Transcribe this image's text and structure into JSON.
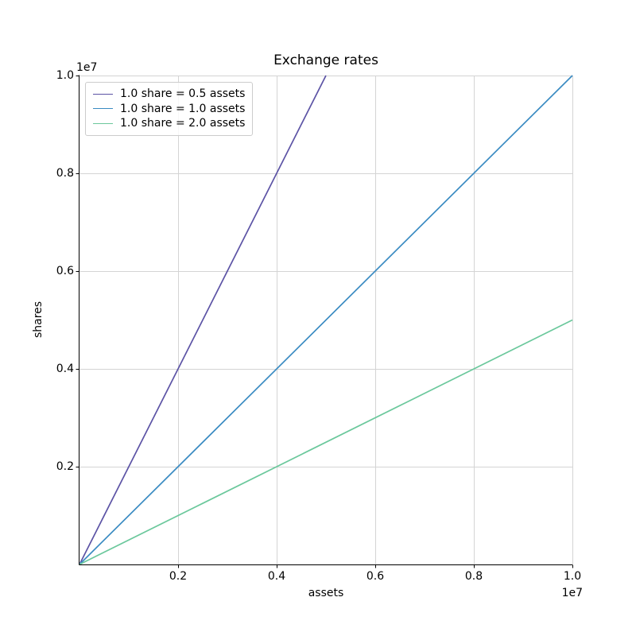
{
  "title": "Exchange rates",
  "axes": {
    "xlabel": "assets",
    "ylabel": "shares",
    "x_offset_text": "1e7",
    "y_offset_text": "1e7"
  },
  "colors": {
    "grid": "#d4d4d4",
    "spine": "#000000",
    "background": "#ffffff",
    "legend_border": "#cccccc"
  },
  "chart_data": {
    "type": "line",
    "title": "Exchange rates",
    "xlabel": "assets",
    "ylabel": "shares",
    "x_offset_text": "1e7",
    "y_offset_text": "1e7",
    "xlim": [
      0,
      10000000
    ],
    "ylim": [
      0,
      10000000
    ],
    "xticks": [
      2000000,
      4000000,
      6000000,
      8000000,
      10000000
    ],
    "yticks": [
      2000000,
      4000000,
      6000000,
      8000000,
      10000000
    ],
    "xtick_labels": [
      "0.2",
      "0.4",
      "0.6",
      "0.8",
      "1.0"
    ],
    "ytick_labels": [
      "0.2",
      "0.4",
      "0.6",
      "0.8",
      "1.0"
    ],
    "grid": true,
    "legend_position": "upper left",
    "series": [
      {
        "name": "1.0 share = 0.5 assets",
        "color": "#5c53a5",
        "slope_shares_per_asset": 2.0,
        "x": [
          0,
          5000000
        ],
        "y": [
          0,
          10000000
        ]
      },
      {
        "name": "1.0 share = 1.0 assets",
        "color": "#3a8bc2",
        "slope_shares_per_asset": 1.0,
        "x": [
          0,
          10000000
        ],
        "y": [
          0,
          10000000
        ]
      },
      {
        "name": "1.0 share = 2.0 assets",
        "color": "#6bc89c",
        "slope_shares_per_asset": 0.5,
        "x": [
          0,
          10000000
        ],
        "y": [
          0,
          5000000
        ]
      }
    ]
  }
}
